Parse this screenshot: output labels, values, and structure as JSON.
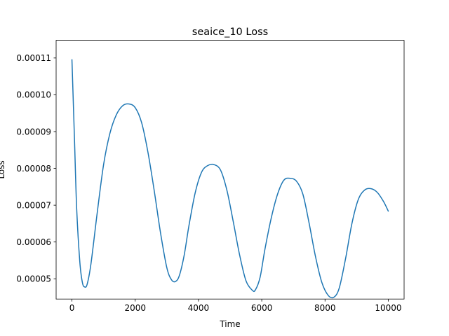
{
  "chart_data": {
    "type": "line",
    "title": "seaice_10 Loss",
    "xlabel": "Time",
    "ylabel": "Loss",
    "xlim": [
      -500,
      10500
    ],
    "ylim": [
      4.45e-05,
      0.0001148
    ],
    "xticks": [
      0,
      2000,
      4000,
      6000,
      8000,
      10000
    ],
    "xtick_labels": [
      "0",
      "2000",
      "4000",
      "6000",
      "8000",
      "10000"
    ],
    "yticks": [
      5e-05,
      6e-05,
      7e-05,
      8e-05,
      9e-05,
      0.0001,
      0.00011
    ],
    "ytick_labels": [
      "0.00005",
      "0.00006",
      "0.00007",
      "0.00008",
      "0.00009",
      "0.00010",
      "0.00011"
    ],
    "grid": false,
    "legend": "none",
    "series": [
      {
        "color": "#1f77b4",
        "x": [
          0,
          80,
          150,
          250,
          330,
          400,
          480,
          600,
          800,
          1000,
          1200,
          1400,
          1600,
          1800,
          2000,
          2200,
          2400,
          2600,
          2800,
          3000,
          3150,
          3280,
          3400,
          3550,
          3700,
          3900,
          4100,
          4300,
          4500,
          4700,
          4900,
          5100,
          5300,
          5500,
          5700,
          5800,
          5950,
          6100,
          6300,
          6500,
          6700,
          6900,
          7100,
          7300,
          7500,
          7700,
          7900,
          8100,
          8280,
          8450,
          8650,
          8850,
          9050,
          9250,
          9450,
          9650,
          9850,
          10000
        ],
        "y": [
          0.0001095,
          8.8e-05,
          6.9e-05,
          5.45e-05,
          4.9e-05,
          4.78e-05,
          4.85e-05,
          5.4e-05,
          6.8e-05,
          8.1e-05,
          8.95e-05,
          9.45e-05,
          9.7e-05,
          9.75e-05,
          9.65e-05,
          9.25e-05,
          8.45e-05,
          7.4e-05,
          6.25e-05,
          5.3e-05,
          4.97e-05,
          4.93e-05,
          5.1e-05,
          5.65e-05,
          6.45e-05,
          7.35e-05,
          7.9e-05,
          8.08e-05,
          8.1e-05,
          7.95e-05,
          7.4e-05,
          6.55e-05,
          5.65e-05,
          4.95e-05,
          4.69e-05,
          4.7e-05,
          5.05e-05,
          5.8e-05,
          6.65e-05,
          7.3e-05,
          7.68e-05,
          7.73e-05,
          7.65e-05,
          7.3e-05,
          6.5e-05,
          5.6e-05,
          4.9e-05,
          4.55e-05,
          4.5e-05,
          4.75e-05,
          5.55e-05,
          6.5e-05,
          7.15e-05,
          7.41e-05,
          7.45e-05,
          7.35e-05,
          7.1e-05,
          6.84e-05
        ]
      }
    ]
  }
}
